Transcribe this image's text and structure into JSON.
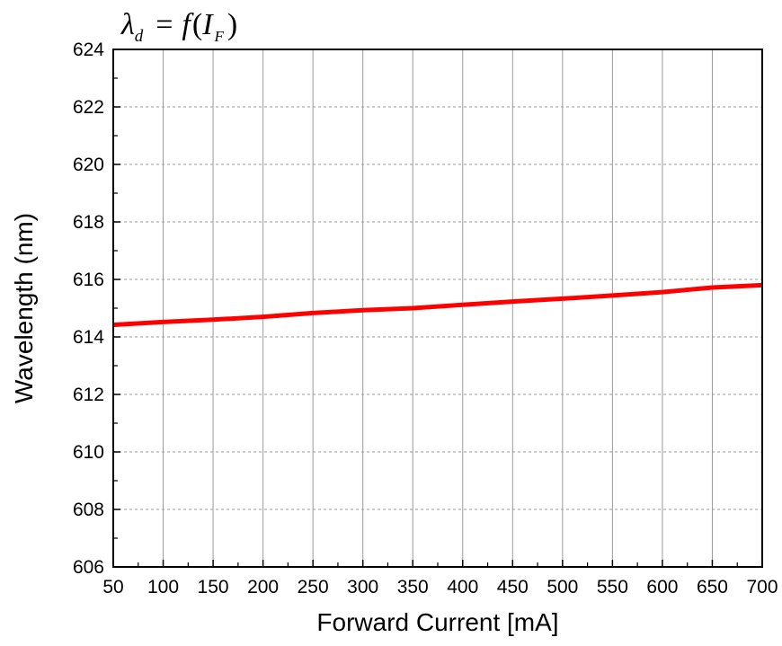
{
  "chart_data": {
    "type": "line",
    "title": "λd = f(IF)",
    "title_parts": {
      "lambda": "λ",
      "lambda_sub": "d",
      "equals": "=",
      "func": "f",
      "open_paren": "(",
      "arg": "I",
      "arg_sub": "F",
      "close_paren": ")"
    },
    "xlabel": "Forward Current [mA]",
    "ylabel": "Wavelength (nm)",
    "xlim": [
      50,
      700
    ],
    "ylim": [
      606,
      624
    ],
    "x_ticks": [
      50,
      100,
      150,
      200,
      250,
      300,
      350,
      400,
      450,
      500,
      550,
      600,
      650,
      700
    ],
    "y_ticks": [
      606,
      608,
      610,
      612,
      614,
      616,
      618,
      620,
      622,
      624
    ],
    "x_grid": "solid",
    "y_grid": "dashed",
    "series": [
      {
        "color": "#ff0000",
        "x": [
          50,
          100,
          150,
          200,
          250,
          300,
          350,
          400,
          450,
          500,
          550,
          600,
          650,
          700
        ],
        "y": [
          614.42,
          614.52,
          614.6,
          614.7,
          614.83,
          614.93,
          615.0,
          615.12,
          615.23,
          615.33,
          615.44,
          615.56,
          615.72,
          615.8
        ]
      }
    ]
  }
}
